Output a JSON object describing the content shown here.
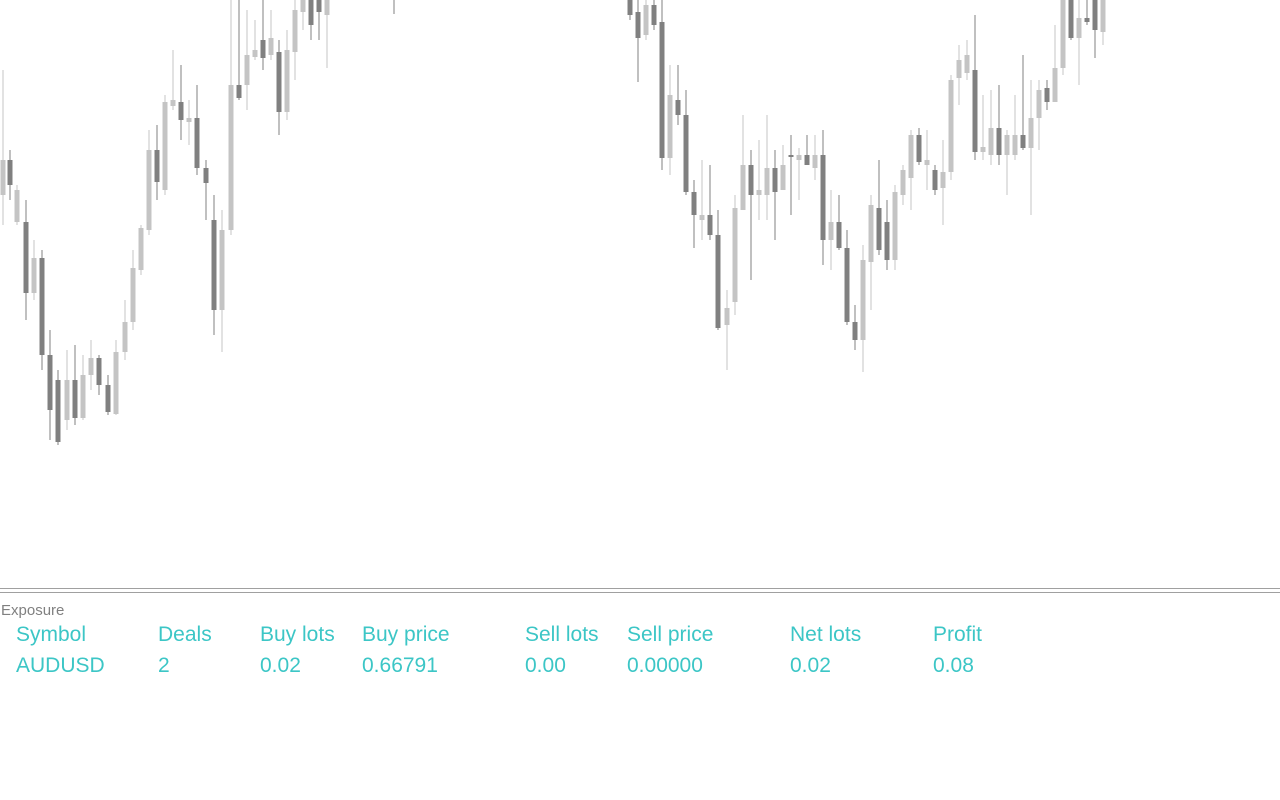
{
  "panel": {
    "title": "Exposure",
    "table": {
      "header": [
        "Symbol",
        "Deals",
        "Buy lots",
        "Buy price",
        "Sell lots",
        "Sell price",
        "Net lots",
        "Profit"
      ],
      "rows": [
        [
          "AUDUSD",
          "2",
          "0.02",
          "0.66791",
          "0.00",
          "0.00000",
          "0.02",
          "0.08"
        ]
      ]
    }
  }
}
